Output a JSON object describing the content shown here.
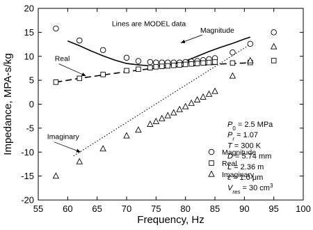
{
  "chart_data": {
    "type": "scatter",
    "xlabel": "Frequency, Hz",
    "ylabel": "Impedance, MPA-s/kg",
    "xlim": [
      55,
      100
    ],
    "ylim": [
      -20,
      20
    ],
    "x_ticks": [
      55,
      60,
      65,
      70,
      75,
      80,
      85,
      90,
      95,
      100
    ],
    "y_ticks": [
      20,
      15,
      10,
      5,
      0,
      -5,
      -10,
      -15,
      -20
    ],
    "grid": false,
    "legend_position": "bottom-right",
    "series": [
      {
        "name": "Magnitude",
        "marker": "circle",
        "x": [
          58,
          62,
          66,
          70,
          72,
          74,
          75,
          76,
          77,
          78,
          79,
          80,
          81,
          82,
          83,
          84,
          85,
          88,
          91,
          95
        ],
        "y": [
          15.8,
          13.3,
          11.3,
          9.7,
          9.0,
          8.8,
          8.7,
          8.7,
          8.7,
          8.7,
          8.7,
          8.8,
          8.9,
          9.0,
          9.2,
          9.4,
          9.6,
          10.8,
          12.6,
          15.0
        ]
      },
      {
        "name": "Real",
        "marker": "square",
        "x": [
          58,
          62,
          66,
          70,
          72,
          74,
          75,
          76,
          77,
          78,
          79,
          80,
          81,
          82,
          83,
          84,
          85,
          88,
          91,
          95
        ],
        "y": [
          4.6,
          5.4,
          6.2,
          7.0,
          7.3,
          7.6,
          7.8,
          7.9,
          8.0,
          8.1,
          8.2,
          8.3,
          8.4,
          8.5,
          8.6,
          8.7,
          8.8,
          8.6,
          8.7,
          9.1
        ]
      },
      {
        "name": "Imaginary",
        "marker": "triangle",
        "x": [
          58,
          62,
          66,
          70,
          72,
          74,
          75,
          76,
          77,
          78,
          79,
          80,
          81,
          82,
          83,
          84,
          85,
          88,
          91,
          95
        ],
        "y": [
          -15.0,
          -12.0,
          -9.3,
          -6.6,
          -5.4,
          -4.2,
          -3.6,
          -3.0,
          -2.4,
          -1.8,
          -1.1,
          -0.5,
          0.2,
          0.9,
          1.5,
          2.1,
          2.7,
          5.9,
          9.1,
          12.0
        ]
      }
    ],
    "model_lines": [
      {
        "label": "Magnitude",
        "style": "solid",
        "x": [
          60,
          62,
          64,
          66,
          68,
          70,
          72,
          74,
          76,
          78,
          80,
          82,
          84,
          86,
          88,
          90,
          91
        ],
        "y": [
          13.2,
          12.2,
          11.1,
          10.1,
          9.2,
          8.5,
          8.2,
          8.0,
          8.0,
          8.3,
          9.0,
          10.0,
          11.0,
          11.9,
          12.7,
          13.6,
          14.0
        ]
      },
      {
        "label": "Real",
        "style": "dashed",
        "x": [
          58,
          62,
          66,
          70,
          74,
          78,
          82,
          86,
          90,
          91
        ],
        "y": [
          4.6,
          5.4,
          6.1,
          6.8,
          7.4,
          7.8,
          8.1,
          8.4,
          8.6,
          8.7
        ]
      },
      {
        "label": "Imaginary",
        "style": "dotted",
        "x": [
          61,
          91
        ],
        "y": [
          -10.8,
          12.5
        ]
      }
    ],
    "annotations": [
      {
        "text": "Lines are MODEL data",
        "x": 67.5,
        "y": 16.3
      },
      {
        "text": "Magnitude",
        "x": 82.5,
        "y": 14.9,
        "arrow_to": [
          79.2,
          12.8
        ]
      },
      {
        "text": "Real",
        "x": 57.8,
        "y": 9.0,
        "arrow_to": [
          63.1,
          5.9
        ]
      },
      {
        "text": "Imaginary",
        "x": 56.5,
        "y": -7.3,
        "arrow_to": [
          62.2,
          -10.0
        ]
      }
    ],
    "parameters": [
      {
        "sym": "P",
        "sub": "0",
        "rest": " = 2.5 MPa",
        "italic": true
      },
      {
        "sym": "P",
        "sub": "r",
        "rest": " = 1.07",
        "italic": true
      },
      {
        "sym": "T",
        "sub": "",
        "rest": " = 300 K",
        "italic": true
      },
      {
        "sym": "D",
        "sub": "",
        "rest": " = 5.74 mm",
        "italic": true
      },
      {
        "sym": "L",
        "sub": "",
        "rest": " = 2.36 m",
        "italic": true
      },
      {
        "sym": "ε",
        "sub": "",
        "rest": " = 1.0 μm",
        "italic": false
      },
      {
        "sym": "V",
        "sub": "res",
        "rest": " = 30 cm",
        "sup": "3",
        "italic": true
      }
    ]
  }
}
